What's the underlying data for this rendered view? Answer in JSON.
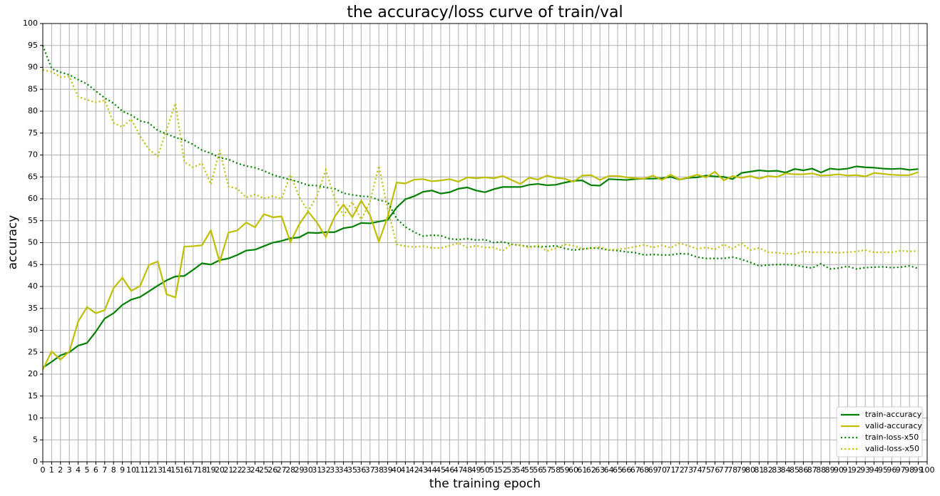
{
  "chart_data": {
    "type": "line",
    "title": "the accuracy/loss curve of train/val",
    "xlabel": "the training epoch",
    "ylabel": "accuracy",
    "grid": true,
    "legend": "lower right",
    "xlim": [
      0,
      100
    ],
    "ylim": [
      0,
      100
    ],
    "xticks": [
      0,
      1,
      2,
      3,
      4,
      5,
      6,
      7,
      8,
      9,
      10,
      11,
      12,
      13,
      14,
      15,
      16,
      17,
      18,
      19,
      20,
      21,
      22,
      23,
      24,
      25,
      26,
      27,
      28,
      29,
      30,
      31,
      32,
      33,
      34,
      35,
      36,
      37,
      38,
      39,
      40,
      41,
      42,
      43,
      44,
      45,
      46,
      47,
      48,
      49,
      50,
      51,
      52,
      53,
      54,
      55,
      56,
      57,
      58,
      59,
      60,
      61,
      62,
      63,
      64,
      65,
      66,
      67,
      68,
      69,
      70,
      71,
      72,
      73,
      74,
      75,
      76,
      77,
      78,
      79,
      80,
      81,
      82,
      83,
      84,
      85,
      86,
      87,
      88,
      89,
      90,
      91,
      92,
      93,
      94,
      95,
      96,
      97,
      98,
      99,
      100
    ],
    "yticks": [
      0,
      5,
      10,
      15,
      20,
      25,
      30,
      35,
      40,
      45,
      50,
      55,
      60,
      65,
      70,
      75,
      80,
      85,
      90,
      95,
      100
    ],
    "x": [
      0,
      1,
      2,
      3,
      4,
      5,
      6,
      7,
      8,
      9,
      10,
      11,
      12,
      13,
      14,
      15,
      16,
      17,
      18,
      19,
      20,
      21,
      22,
      23,
      24,
      25,
      26,
      27,
      28,
      29,
      30,
      31,
      32,
      33,
      34,
      35,
      36,
      37,
      38,
      39,
      40,
      41,
      42,
      43,
      44,
      45,
      46,
      47,
      48,
      49,
      50,
      51,
      52,
      53,
      54,
      55,
      56,
      57,
      58,
      59,
      60,
      61,
      62,
      63,
      64,
      65,
      66,
      67,
      68,
      69,
      70,
      71,
      72,
      73,
      74,
      75,
      76,
      77,
      78,
      79,
      80,
      81,
      82,
      83,
      84,
      85,
      86,
      87,
      88,
      89,
      90,
      91,
      92,
      93,
      94,
      95,
      96,
      97,
      98,
      99
    ],
    "series": [
      {
        "name": "train-accuracy",
        "color": "#008000",
        "linestyle": "solid",
        "values": [
          21.5,
          22.8,
          24.3,
          25,
          26.5,
          27.1,
          29.7,
          32.7,
          33.9,
          35.8,
          37,
          37.6,
          38.9,
          40.2,
          41.4,
          42.3,
          42.4,
          43.8,
          45.3,
          45,
          46,
          46.4,
          47.2,
          48.2,
          48.4,
          49.2,
          50,
          50.4,
          51,
          51.2,
          52.3,
          52.2,
          52.4,
          52.4,
          53.3,
          53.6,
          54.5,
          54.4,
          54.8,
          55.2,
          58,
          59.9,
          60.6,
          61.6,
          61.9,
          61.2,
          61.5,
          62.3,
          62.6,
          61.9,
          61.5,
          62.2,
          62.7,
          62.7,
          62.7,
          63.2,
          63.4,
          63.1,
          63.2,
          63.7,
          64.1,
          64.2,
          63.1,
          63,
          64.5,
          64.4,
          64.3,
          64.5,
          64.6,
          64.6,
          64.7,
          65,
          64.4,
          64.8,
          64.9,
          65.3,
          65.1,
          65,
          64.5,
          65.9,
          66.2,
          66.5,
          66.3,
          66.4,
          66,
          66.8,
          66.5,
          66.9,
          66,
          66.9,
          66.7,
          66.9,
          67.4,
          67.2,
          67.1,
          66.9,
          66.8,
          66.9,
          66.6,
          66.8
        ]
      },
      {
        "name": "valid-accuracy",
        "color": "#bfbf00",
        "linestyle": "solid",
        "values": [
          21,
          25.2,
          23.3,
          25.2,
          32,
          35.3,
          33.9,
          34.6,
          39.6,
          42,
          39,
          40.1,
          44.9,
          45.7,
          38.2,
          37.5,
          49.1,
          49.2,
          49.4,
          52.8,
          45.6,
          52.3,
          52.8,
          54.6,
          53.5,
          56.5,
          55.8,
          56,
          50.1,
          54.2,
          57.1,
          54.6,
          51.3,
          55.9,
          58.7,
          55.8,
          59.6,
          56.3,
          50.2,
          55.9,
          63.7,
          63.5,
          64.4,
          64.5,
          64,
          64.2,
          64.5,
          63.9,
          64.9,
          64.7,
          64.9,
          64.7,
          65.2,
          64.3,
          63.4,
          64.8,
          64.4,
          65.3,
          64.8,
          64.6,
          63.9,
          65.3,
          65.4,
          64.3,
          65.2,
          65.2,
          64.9,
          64.7,
          64.6,
          65.3,
          64.3,
          65.5,
          64.4,
          64.9,
          65.5,
          64.9,
          66.2,
          64.2,
          65.2,
          64.8,
          65.2,
          64.6,
          65.2,
          65,
          65.8,
          65.6,
          65.6,
          65.8,
          65.3,
          65.4,
          65.6,
          65.3,
          65.4,
          65.1,
          65.9,
          65.7,
          65.5,
          65.4,
          65.4,
          66.1
        ]
      },
      {
        "name": "train-loss-x50",
        "color": "#008000",
        "linestyle": "dotted",
        "values": [
          95,
          89.7,
          88.9,
          88.3,
          87.2,
          86.2,
          84.6,
          83,
          81.8,
          80,
          79.1,
          77.8,
          77.3,
          75.6,
          74.8,
          74,
          73.4,
          72.4,
          71.1,
          70.4,
          69.4,
          69,
          68.1,
          67.5,
          67.1,
          66.4,
          65.5,
          64.9,
          64.4,
          63.8,
          63.1,
          63,
          62.6,
          62.3,
          61.3,
          60.9,
          60.6,
          60.5,
          59.7,
          59.3,
          55.5,
          53.6,
          52.4,
          51.5,
          51.7,
          51.6,
          50.9,
          50.7,
          50.9,
          50.6,
          50.7,
          50,
          50.2,
          49.6,
          49.4,
          49.1,
          49.1,
          49.1,
          49.3,
          48.7,
          48.3,
          48.5,
          48.8,
          48.7,
          48.3,
          48.2,
          47.9,
          47.7,
          47.2,
          47.3,
          47.2,
          47.2,
          47.5,
          47.4,
          46.7,
          46.4,
          46.4,
          46.4,
          46.7,
          46.2,
          45.5,
          44.7,
          44.9,
          45,
          45,
          44.9,
          44.5,
          44.2,
          45.2,
          44,
          44.2,
          44.6,
          44,
          44.3,
          44.4,
          44.5,
          44.3,
          44.4,
          44.7,
          44.1
        ]
      },
      {
        "name": "valid-loss-x50",
        "color": "#bfbf00",
        "linestyle": "dotted",
        "values": [
          89.4,
          89,
          87.8,
          87.9,
          83.3,
          82.6,
          82,
          82.5,
          77.3,
          76.4,
          78.2,
          74.3,
          71.3,
          69.7,
          75.8,
          81.8,
          68.4,
          67.2,
          68.1,
          63.3,
          71.1,
          62.8,
          62.3,
          60.3,
          61,
          60.1,
          60.6,
          60,
          65.5,
          60.4,
          57.2,
          60.6,
          66.6,
          60.1,
          56.2,
          59.3,
          55.3,
          59.3,
          67.5,
          57.7,
          49.6,
          49.2,
          49,
          49.2,
          48.8,
          48.8,
          49.3,
          49.9,
          48.9,
          49.3,
          48.9,
          48.9,
          48.1,
          49.7,
          49.4,
          48.9,
          49.4,
          48.1,
          48.7,
          49.6,
          49.3,
          48.6,
          48.7,
          49,
          48.3,
          48.5,
          48.7,
          49.1,
          49.5,
          48.9,
          49.4,
          48.8,
          49.9,
          49.3,
          48.6,
          48.9,
          48.5,
          49.6,
          48.6,
          49.9,
          48.3,
          48.8,
          47.8,
          47.7,
          47.5,
          47.4,
          48,
          47.8,
          47.8,
          47.8,
          47.7,
          47.8,
          48,
          48.3,
          47.8,
          47.8,
          47.8,
          48.2,
          48,
          48.1
        ]
      }
    ]
  }
}
